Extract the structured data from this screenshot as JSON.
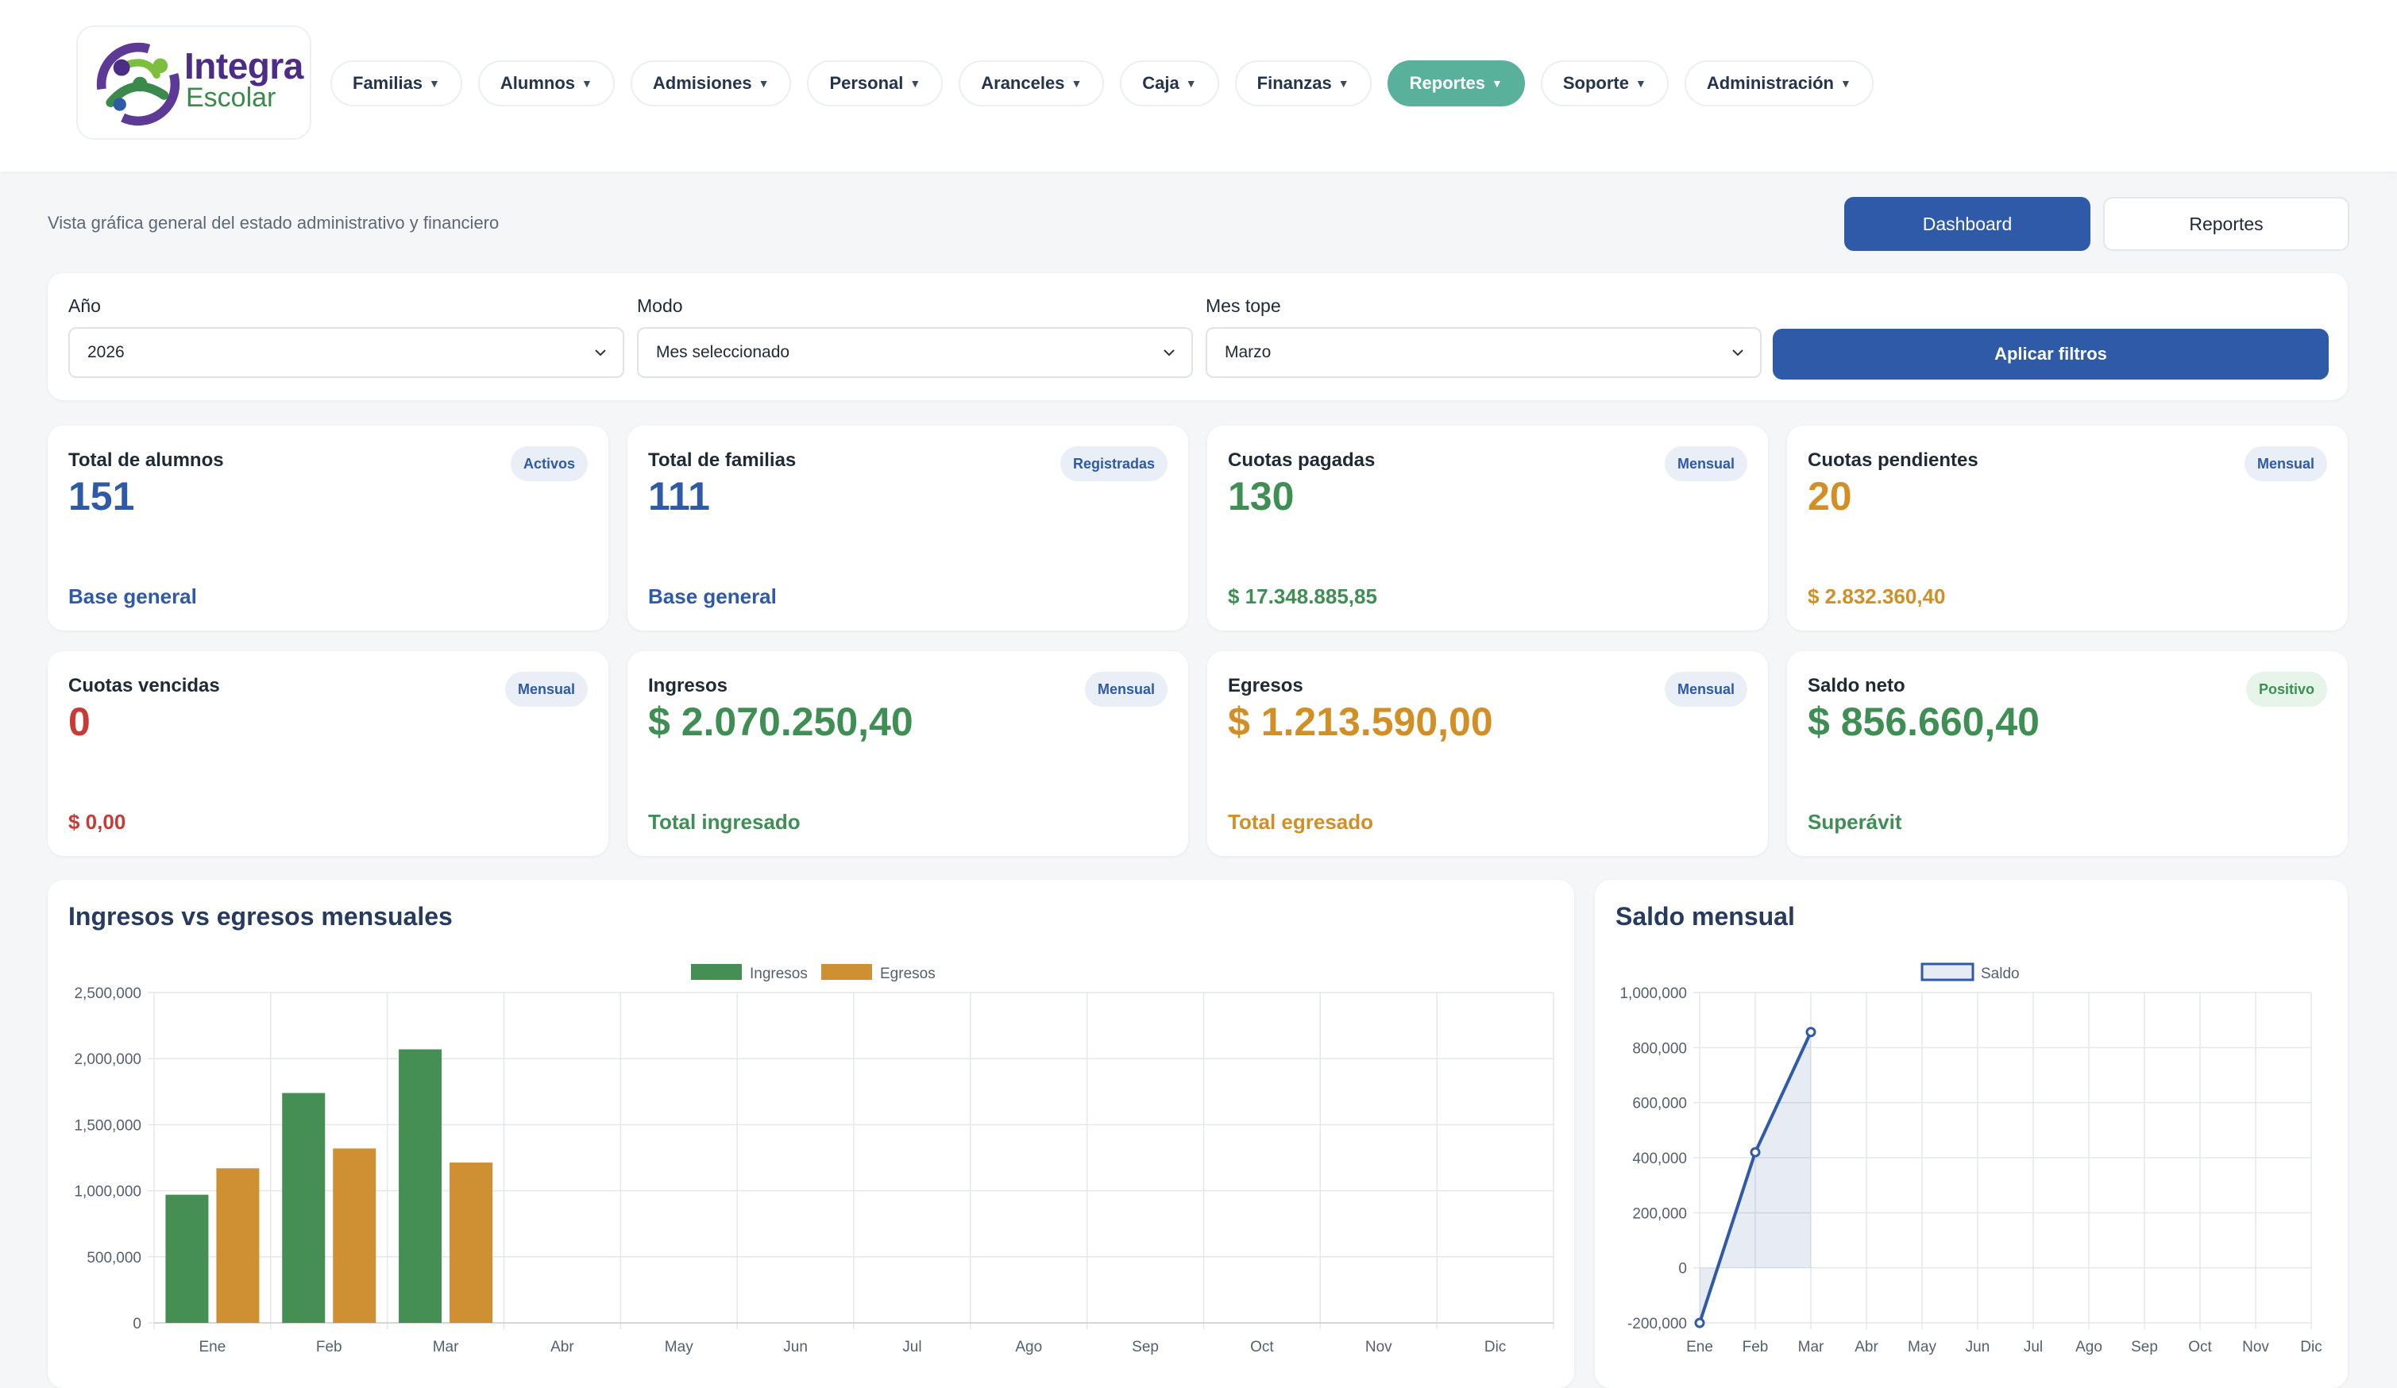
{
  "brand": {
    "line1": "Integra",
    "line2": "Escolar"
  },
  "nav": [
    {
      "label": "Familias",
      "active": false
    },
    {
      "label": "Alumnos",
      "active": false
    },
    {
      "label": "Admisiones",
      "active": false
    },
    {
      "label": "Personal",
      "active": false
    },
    {
      "label": "Aranceles",
      "active": false
    },
    {
      "label": "Caja",
      "active": false
    },
    {
      "label": "Finanzas",
      "active": false
    },
    {
      "label": "Reportes",
      "active": true
    },
    {
      "label": "Soporte",
      "active": false
    },
    {
      "label": "Administración",
      "active": false
    }
  ],
  "subtitle": "Vista gráfica general del estado administrativo y financiero",
  "view_buttons": {
    "dashboard": "Dashboard",
    "reportes": "Reportes"
  },
  "filters": {
    "year_label": "Año",
    "year_value": "2026",
    "mode_label": "Modo",
    "mode_value": "Mes seleccionado",
    "month_label": "Mes tope",
    "month_value": "Marzo",
    "apply_label": "Aplicar filtros"
  },
  "stats": [
    {
      "label": "Total de alumnos",
      "badge": "Activos",
      "value": "151",
      "foot": "Base general",
      "color": "#2e5aa8"
    },
    {
      "label": "Total de familias",
      "badge": "Registradas",
      "value": "111",
      "foot": "Base general",
      "color": "#2e5aa8"
    },
    {
      "label": "Cuotas pagadas",
      "badge": "Mensual",
      "value": "130",
      "foot": "$ 17.348.885,85",
      "color": "#3f8f54"
    },
    {
      "label": "Cuotas pendientes",
      "badge": "Mensual",
      "value": "20",
      "foot": "$ 2.832.360,40",
      "color": "#d18f25"
    },
    {
      "label": "Cuotas vencidas",
      "badge": "Mensual",
      "value": "0",
      "foot": "$ 0,00",
      "color": "#c93a36"
    },
    {
      "label": "Ingresos",
      "badge": "Mensual",
      "value": "$ 2.070.250,40",
      "foot": "Total ingresado",
      "color": "#3f8f54"
    },
    {
      "label": "Egresos",
      "badge": "Mensual",
      "value": "$ 1.213.590,00",
      "foot": "Total egresado",
      "color": "#d18f25"
    },
    {
      "label": "Saldo neto",
      "badge": "Positivo",
      "value": "$ 856.660,40",
      "foot": "Superávit",
      "color": "#3f8f54"
    }
  ],
  "charts": {
    "bar_title": "Ingresos vs egresos mensuales",
    "line_title": "Saldo mensual"
  },
  "chart_data": [
    {
      "type": "bar",
      "title": "Ingresos vs egresos mensuales",
      "categories": [
        "Ene",
        "Feb",
        "Mar",
        "Abr",
        "May",
        "Jun",
        "Jul",
        "Ago",
        "Sep",
        "Oct",
        "Nov",
        "Dic"
      ],
      "series": [
        {
          "name": "Ingresos",
          "color": "#458f55",
          "values": [
            970000,
            1740000,
            2070250.4,
            null,
            null,
            null,
            null,
            null,
            null,
            null,
            null,
            null
          ]
        },
        {
          "name": "Egresos",
          "color": "#cf8f33",
          "values": [
            1170000,
            1320000,
            1213590,
            null,
            null,
            null,
            null,
            null,
            null,
            null,
            null,
            null
          ]
        }
      ],
      "yticks": [
        "0",
        "500,000",
        "1,000,000",
        "1,500,000",
        "2,000,000",
        "2,500,000"
      ],
      "ylim": [
        0,
        2500000
      ],
      "grid": true,
      "legend": "top-center"
    },
    {
      "type": "line",
      "title": "Saldo mensual",
      "categories": [
        "Ene",
        "Feb",
        "Mar",
        "Abr",
        "May",
        "Jun",
        "Jul",
        "Ago",
        "Sep",
        "Oct",
        "Nov",
        "Dic"
      ],
      "series": [
        {
          "name": "Saldo",
          "color": "#2e5aa8",
          "values": [
            -200000,
            420000,
            856660.4,
            null,
            null,
            null,
            null,
            null,
            null,
            null,
            null,
            null
          ]
        }
      ],
      "yticks": [
        "-200,000",
        "0",
        "200,000",
        "400,000",
        "600,000",
        "800,000",
        "1,000,000"
      ],
      "ylim": [
        -200000,
        1000000
      ],
      "area_fill": true,
      "grid": true,
      "legend": "top-center"
    }
  ]
}
